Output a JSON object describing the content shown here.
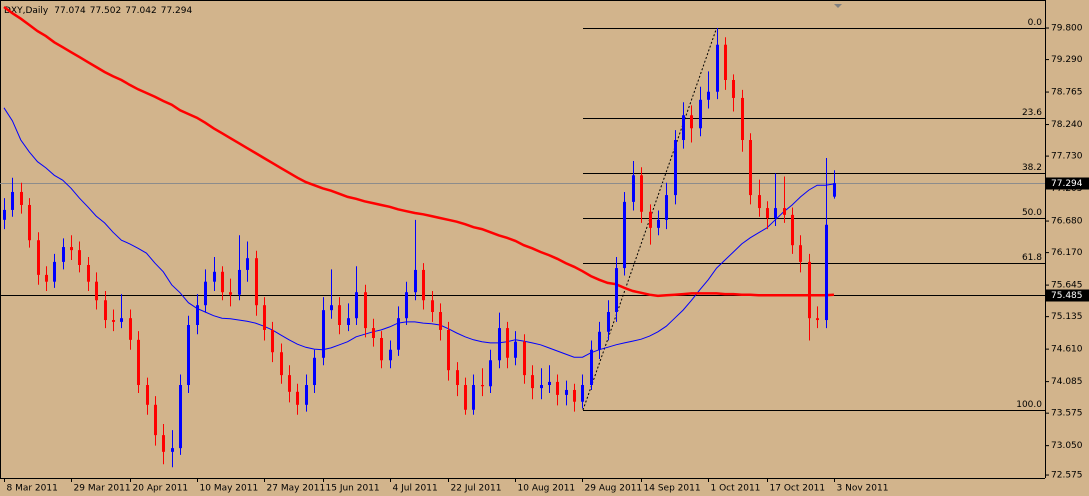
{
  "chart_data": {
    "type": "candlestick",
    "symbol": "DXY,Daily",
    "up_color": "#0000ff",
    "down_color": "#ff0000",
    "ylim": [
      72.527,
      80.253
    ],
    "yticks": [
      {
        "value": 79.8,
        "label": "79.800"
      },
      {
        "value": 79.29,
        "label": "79.290"
      },
      {
        "value": 78.765,
        "label": "78.765"
      },
      {
        "value": 78.24,
        "label": "78.240"
      },
      {
        "value": 77.73,
        "label": "77.730"
      },
      {
        "value": 77.205,
        "label": "77.205"
      },
      {
        "value": 76.68,
        "label": "76.680"
      },
      {
        "value": 76.17,
        "label": "76.170"
      },
      {
        "value": 75.645,
        "label": "75.645"
      },
      {
        "value": 75.135,
        "label": "75.135"
      },
      {
        "value": 74.61,
        "label": "74.610"
      },
      {
        "value": 74.085,
        "label": "74.085"
      },
      {
        "value": 73.575,
        "label": "73.575"
      },
      {
        "value": 73.05,
        "label": "73.050"
      },
      {
        "value": 72.575,
        "label": "72.575"
      }
    ],
    "categories": [
      "8 Mar 2011",
      null,
      null,
      null,
      null,
      null,
      null,
      null,
      "29 Mar 2011",
      null,
      null,
      null,
      null,
      null,
      null,
      "20 Apr 2011",
      null,
      null,
      null,
      null,
      null,
      null,
      null,
      "10 May 2011",
      null,
      null,
      null,
      null,
      null,
      null,
      null,
      "27 May 2011",
      null,
      null,
      null,
      null,
      null,
      null,
      "15 Jun 2011",
      null,
      null,
      null,
      null,
      null,
      null,
      null,
      "4 Jul 2011",
      null,
      null,
      null,
      null,
      null,
      null,
      "22 Jul 2011",
      null,
      null,
      null,
      null,
      null,
      null,
      null,
      "10 Aug 2011",
      null,
      null,
      null,
      null,
      null,
      null,
      null,
      "29 Aug 2011",
      null,
      null,
      null,
      null,
      null,
      null,
      "14 Sep 2011",
      null,
      null,
      null,
      null,
      null,
      null,
      null,
      "1 Oct 2011",
      null,
      null,
      null,
      null,
      null,
      null,
      "17 Oct 2011",
      null,
      null,
      null,
      null,
      null,
      null,
      null,
      "3 Nov 2011"
    ],
    "ohlc": [
      [
        76.7,
        77.05,
        76.55,
        76.86
      ],
      [
        76.86,
        77.38,
        76.75,
        77.15
      ],
      [
        77.15,
        77.3,
        76.8,
        76.94
      ],
      [
        76.94,
        77.05,
        76.25,
        76.37
      ],
      [
        76.37,
        76.5,
        75.65,
        75.81
      ],
      [
        75.81,
        75.95,
        75.55,
        75.7
      ],
      [
        75.7,
        76.15,
        75.6,
        76.02
      ],
      [
        76.02,
        76.4,
        75.9,
        76.26
      ],
      [
        76.26,
        76.45,
        76.05,
        76.21
      ],
      [
        76.21,
        76.35,
        75.85,
        75.97
      ],
      [
        75.97,
        76.1,
        75.55,
        75.7
      ],
      [
        75.7,
        75.85,
        75.25,
        75.4
      ],
      [
        75.4,
        75.55,
        74.95,
        75.08
      ],
      [
        75.08,
        75.25,
        74.9,
        75.05
      ],
      [
        75.05,
        75.5,
        74.95,
        75.11
      ],
      [
        75.11,
        75.25,
        74.6,
        74.76
      ],
      [
        74.76,
        74.9,
        73.9,
        74.03
      ],
      [
        74.03,
        74.15,
        73.55,
        73.71
      ],
      [
        73.71,
        73.85,
        73.05,
        73.22
      ],
      [
        73.22,
        73.4,
        72.75,
        72.95
      ],
      [
        72.95,
        73.3,
        72.7,
        73.01
      ],
      [
        73.01,
        74.2,
        72.9,
        74.03
      ],
      [
        74.03,
        75.15,
        73.9,
        75.0
      ],
      [
        75.0,
        75.5,
        74.85,
        75.32
      ],
      [
        75.32,
        75.9,
        75.2,
        75.7
      ],
      [
        75.7,
        76.1,
        75.55,
        75.86
      ],
      [
        75.86,
        75.95,
        75.4,
        75.53
      ],
      [
        75.53,
        75.75,
        75.3,
        75.49
      ],
      [
        75.49,
        76.45,
        75.4,
        75.89
      ],
      [
        75.89,
        76.35,
        75.7,
        76.08
      ],
      [
        76.08,
        76.2,
        75.15,
        75.32
      ],
      [
        75.32,
        75.45,
        74.75,
        74.92
      ],
      [
        74.92,
        75.05,
        74.4,
        74.56
      ],
      [
        74.56,
        74.7,
        74.05,
        74.19
      ],
      [
        74.19,
        74.35,
        73.75,
        73.92
      ],
      [
        73.92,
        74.05,
        73.55,
        73.71
      ],
      [
        73.71,
        74.2,
        73.6,
        74.03
      ],
      [
        74.03,
        74.6,
        73.9,
        74.47
      ],
      [
        74.47,
        75.45,
        74.35,
        75.24
      ],
      [
        75.24,
        75.9,
        75.1,
        75.32
      ],
      [
        75.32,
        75.45,
        74.85,
        75.0
      ],
      [
        75.0,
        75.35,
        74.9,
        75.11
      ],
      [
        75.11,
        75.95,
        75.0,
        75.53
      ],
      [
        75.53,
        75.65,
        74.8,
        74.95
      ],
      [
        74.95,
        75.1,
        74.65,
        74.79
      ],
      [
        74.79,
        74.9,
        74.3,
        74.43
      ],
      [
        74.43,
        74.75,
        74.3,
        74.6
      ],
      [
        74.6,
        75.3,
        74.5,
        75.11
      ],
      [
        75.11,
        75.7,
        75.0,
        75.53
      ],
      [
        75.53,
        76.7,
        75.4,
        75.89
      ],
      [
        75.89,
        76.0,
        75.25,
        75.4
      ],
      [
        75.4,
        75.55,
        75.05,
        75.21
      ],
      [
        75.21,
        75.35,
        74.75,
        74.92
      ],
      [
        74.92,
        75.05,
        74.1,
        74.27
      ],
      [
        74.27,
        74.4,
        73.85,
        74.03
      ],
      [
        74.03,
        74.15,
        73.55,
        73.63
      ],
      [
        73.63,
        74.2,
        73.55,
        74.03
      ],
      [
        74.03,
        74.3,
        73.85,
        74.01
      ],
      [
        74.01,
        74.6,
        73.9,
        74.43
      ],
      [
        74.43,
        75.2,
        74.3,
        74.95
      ],
      [
        74.95,
        75.05,
        74.3,
        74.47
      ],
      [
        74.47,
        74.9,
        74.35,
        74.73
      ],
      [
        74.73,
        74.85,
        74.05,
        74.19
      ],
      [
        74.19,
        74.35,
        73.8,
        73.98
      ],
      [
        73.98,
        74.3,
        73.8,
        74.03
      ],
      [
        74.03,
        74.35,
        73.9,
        74.08
      ],
      [
        74.08,
        74.2,
        73.7,
        73.87
      ],
      [
        73.87,
        74.1,
        73.7,
        73.95
      ],
      [
        73.95,
        74.05,
        73.6,
        73.76
      ],
      [
        73.76,
        74.2,
        73.65,
        74.03
      ],
      [
        74.03,
        74.75,
        73.95,
        74.6
      ],
      [
        74.6,
        75.05,
        74.45,
        74.89
      ],
      [
        74.89,
        75.4,
        74.75,
        75.21
      ],
      [
        75.21,
        76.1,
        75.05,
        75.92
      ],
      [
        75.92,
        77.15,
        75.8,
        76.99
      ],
      [
        76.99,
        77.65,
        76.85,
        77.42
      ],
      [
        77.42,
        77.55,
        76.65,
        76.83
      ],
      [
        76.83,
        76.95,
        76.3,
        76.57
      ],
      [
        76.57,
        76.85,
        76.45,
        76.7
      ],
      [
        76.7,
        77.3,
        76.55,
        77.1
      ],
      [
        77.1,
        78.15,
        76.95,
        77.99
      ],
      [
        77.99,
        78.6,
        77.85,
        78.39
      ],
      [
        78.39,
        78.55,
        77.95,
        78.18
      ],
      [
        78.18,
        78.85,
        78.05,
        78.64
      ],
      [
        78.64,
        79.1,
        78.5,
        78.77
      ],
      [
        78.77,
        79.8,
        78.65,
        79.53
      ],
      [
        79.53,
        79.65,
        78.8,
        78.96
      ],
      [
        78.96,
        79.05,
        78.45,
        78.67
      ],
      [
        78.67,
        78.8,
        77.8,
        77.99
      ],
      [
        77.99,
        78.1,
        76.95,
        77.1
      ],
      [
        77.1,
        77.35,
        76.75,
        76.89
      ],
      [
        76.89,
        77.0,
        76.55,
        76.73
      ],
      [
        76.73,
        77.45,
        76.6,
        76.89
      ],
      [
        76.89,
        77.4,
        76.65,
        76.78
      ],
      [
        76.78,
        76.9,
        76.15,
        76.29
      ],
      [
        76.29,
        76.45,
        75.85,
        76.02
      ],
      [
        76.02,
        76.15,
        74.75,
        75.11
      ],
      [
        75.11,
        75.3,
        74.95,
        75.08
      ],
      [
        75.08,
        77.7,
        74.95,
        76.62
      ],
      [
        77.074,
        77.502,
        77.042,
        77.294
      ]
    ],
    "moving_averages": [
      {
        "color": "#0000ff",
        "values": [
          78.51,
          78.3,
          77.99,
          77.8,
          77.64,
          77.54,
          77.42,
          77.34,
          77.21,
          77.05,
          76.91,
          76.76,
          76.65,
          76.5,
          76.37,
          76.31,
          76.24,
          76.16,
          76.0,
          75.86,
          75.65,
          75.52,
          75.36,
          75.27,
          75.21,
          75.15,
          75.11,
          75.1,
          75.08,
          75.06,
          75.03,
          74.98,
          74.92,
          74.84,
          74.76,
          74.69,
          74.64,
          74.61,
          74.6,
          74.63,
          74.68,
          74.73,
          74.81,
          74.85,
          74.89,
          74.92,
          74.97,
          75.03,
          75.05,
          75.05,
          75.03,
          75.02,
          75.0,
          74.94,
          74.87,
          74.81,
          74.76,
          74.73,
          74.71,
          74.71,
          74.73,
          74.76,
          74.74,
          74.71,
          74.68,
          74.63,
          74.58,
          74.53,
          74.48,
          74.48,
          74.55,
          74.6,
          74.64,
          74.68,
          74.71,
          74.74,
          74.77,
          74.82,
          74.89,
          74.98,
          75.11,
          75.24,
          75.4,
          75.57,
          75.73,
          75.92,
          76.05,
          76.18,
          76.31,
          76.41,
          76.49,
          76.57,
          76.7,
          76.83,
          76.94,
          77.07,
          77.18,
          77.26,
          77.26,
          77.28
        ]
      },
      {
        "color": "#ff0000",
        "values": [
          80.14,
          80.04,
          79.95,
          79.85,
          79.75,
          79.67,
          79.57,
          79.49,
          79.41,
          79.33,
          79.25,
          79.17,
          79.09,
          79.02,
          78.96,
          78.88,
          78.81,
          78.75,
          78.69,
          78.62,
          78.56,
          78.47,
          78.41,
          78.35,
          78.27,
          78.18,
          78.1,
          78.02,
          77.94,
          77.86,
          77.78,
          77.7,
          77.62,
          77.54,
          77.46,
          77.38,
          77.31,
          77.26,
          77.21,
          77.17,
          77.12,
          77.07,
          77.04,
          77.0,
          76.97,
          76.94,
          76.91,
          76.87,
          76.84,
          76.81,
          76.79,
          76.76,
          76.73,
          76.7,
          76.67,
          76.63,
          76.58,
          76.55,
          76.5,
          76.45,
          76.41,
          76.36,
          76.29,
          76.24,
          76.18,
          76.13,
          76.07,
          76.0,
          75.94,
          75.87,
          75.79,
          75.73,
          75.68,
          75.66,
          75.6,
          75.55,
          75.52,
          75.49,
          75.47,
          75.48,
          75.49,
          75.5,
          75.51,
          75.51,
          75.51,
          75.51,
          75.5,
          75.5,
          75.49,
          75.49,
          75.48,
          75.48,
          75.48,
          75.48,
          75.48,
          75.48,
          75.48,
          75.48,
          75.48,
          75.49
        ]
      }
    ],
    "hline": 75.485,
    "fibonacci": [
      {
        "value": 79.8,
        "label": "0.0"
      },
      {
        "value": 78.346,
        "label": "23.6"
      },
      {
        "value": 77.457,
        "label": "38.2"
      },
      {
        "value": 76.729,
        "label": "50.0"
      },
      {
        "value": 76.002,
        "label": "61.8"
      },
      {
        "value": 73.626,
        "label": "100.0"
      }
    ]
  }
}
